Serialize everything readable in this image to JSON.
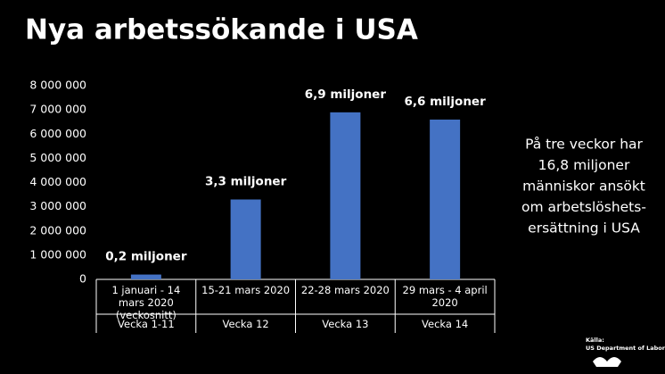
{
  "chart_data": {
    "type": "bar",
    "title": "Nya arbetssökande i USA",
    "categories": [
      "1 januari - 14 mars 2020 (veckosnitt)",
      "15-21 mars 2020",
      "22-28 mars 2020",
      "29 mars - 4 april 2020"
    ],
    "categories_2": [
      "Vecka 1-11",
      "Vecka 12",
      "Vecka 13",
      "Vecka 14"
    ],
    "values": [
      200000,
      3300000,
      6900000,
      6600000
    ],
    "value_labels": [
      "0,2 miljoner",
      "3,3 miljoner",
      "6,9 miljoner",
      "6,6 miljoner"
    ],
    "color": "#4472c4",
    "ylim": [
      0,
      8000000
    ],
    "yticks": [
      0,
      {
        "value": 1000000,
        "label": "1 000 000"
      },
      {
        "value": 2000000,
        "label": "2 000 000"
      },
      {
        "value": 3000000,
        "label": "3 000 000"
      },
      {
        "value": 4000000,
        "label": "4 000 000"
      },
      {
        "value": 5000000,
        "label": "5 000 000"
      },
      {
        "value": 6000000,
        "label": "6 000 000"
      },
      {
        "value": 7000000,
        "label": "7 000 000"
      },
      {
        "value": 8000000,
        "label": "8 000 000"
      }
    ],
    "grid": false,
    "annotation": [
      "På tre veckor har",
      "16,8 miljoner",
      "människor ansökt",
      "om arbetslöshets-",
      "ersättning i USA"
    ],
    "source": [
      "Källa:",
      "US Department of Labor"
    ]
  }
}
